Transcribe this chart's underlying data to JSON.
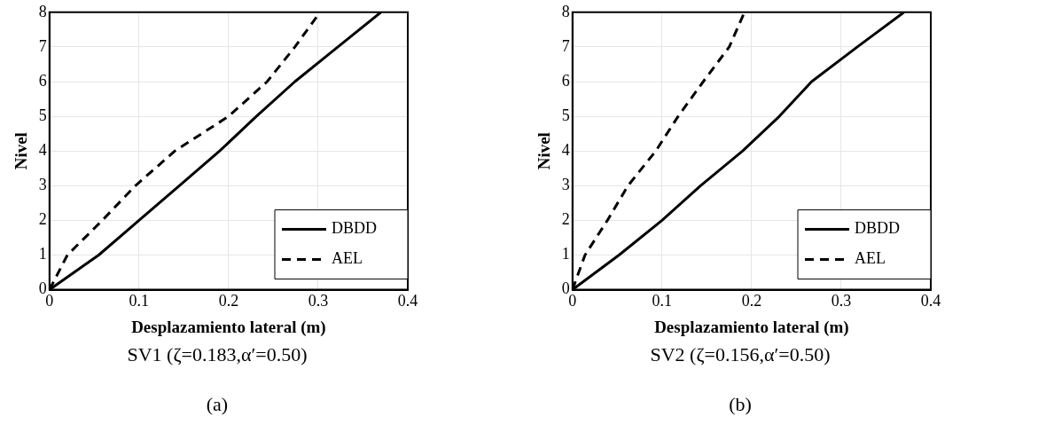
{
  "chart_data": [
    {
      "type": "line",
      "xlabel": "Desplazamiento lateral (m)",
      "ylabel": "Nivel",
      "xlim": [
        0,
        0.4
      ],
      "xticks": [
        0,
        0.1,
        0.2,
        0.3,
        0.4
      ],
      "ylim": [
        0,
        8
      ],
      "yticks": [
        0,
        1,
        2,
        3,
        4,
        5,
        6,
        7,
        8
      ],
      "grid": true,
      "legend": "bottom right",
      "marker": "none",
      "annotations": [
        "SV1 (ζ=0.183,α′=0.50)",
        "(a)"
      ],
      "series": [
        {
          "name": "DBDD",
          "color": "#000000",
          "line_style": "solid",
          "x": [
            0,
            0.055,
            0.1,
            0.145,
            0.19,
            0.231,
            0.274,
            0.322,
            0.37
          ],
          "values": [
            0,
            1,
            2,
            3,
            4,
            5,
            6,
            7,
            8
          ]
        },
        {
          "name": "AEL",
          "color": "#000000",
          "line_style": "dashed",
          "x": [
            0,
            0.02,
            0.059,
            0.096,
            0.14,
            0.2,
            0.243,
            0.274,
            0.302
          ],
          "values": [
            0,
            1,
            2,
            3,
            4,
            5,
            6,
            7,
            8
          ]
        }
      ]
    },
    {
      "type": "line",
      "xlabel": "Desplazamiento lateral (m)",
      "ylabel": "Nivel",
      "xlim": [
        0,
        0.4
      ],
      "xticks": [
        0,
        0.1,
        0.2,
        0.3,
        0.4
      ],
      "ylim": [
        0,
        8
      ],
      "yticks": [
        0,
        1,
        2,
        3,
        4,
        5,
        6,
        7,
        8
      ],
      "grid": true,
      "legend": "bottom right",
      "marker": "none",
      "annotations": [
        "SV2 (ζ=0.156,α′=0.50)",
        "(b)"
      ],
      "series": [
        {
          "name": "DBDD",
          "color": "#000000",
          "line_style": "solid",
          "x": [
            0,
            0.052,
            0.1,
            0.143,
            0.19,
            0.231,
            0.267,
            0.318,
            0.37
          ],
          "values": [
            0,
            1,
            2,
            3,
            4,
            5,
            6,
            7,
            8
          ]
        },
        {
          "name": "AEL",
          "color": "#000000",
          "line_style": "dashed",
          "x": [
            0,
            0.014,
            0.039,
            0.062,
            0.093,
            0.118,
            0.146,
            0.175,
            0.192
          ],
          "values": [
            0,
            1,
            2,
            3,
            4,
            5,
            6,
            7,
            8
          ]
        }
      ]
    }
  ]
}
